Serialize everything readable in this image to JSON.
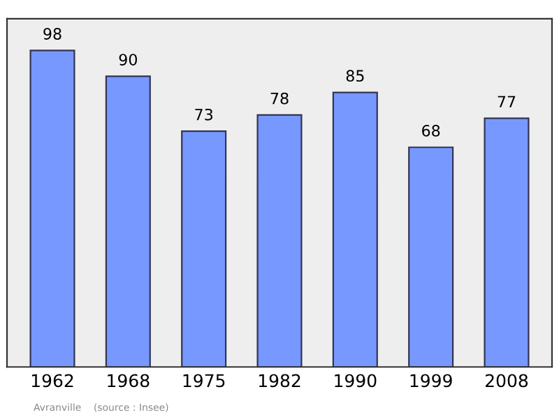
{
  "chart_data": {
    "type": "bar",
    "categories": [
      "1962",
      "1968",
      "1975",
      "1982",
      "1990",
      "1999",
      "2008"
    ],
    "values": [
      98,
      90,
      73,
      78,
      85,
      68,
      77
    ],
    "color": "#7799ff",
    "data_labels": true,
    "tick_labels": "x",
    "grid": false,
    "annotations": [
      "Avranville    (source : Insee)"
    ]
  }
}
